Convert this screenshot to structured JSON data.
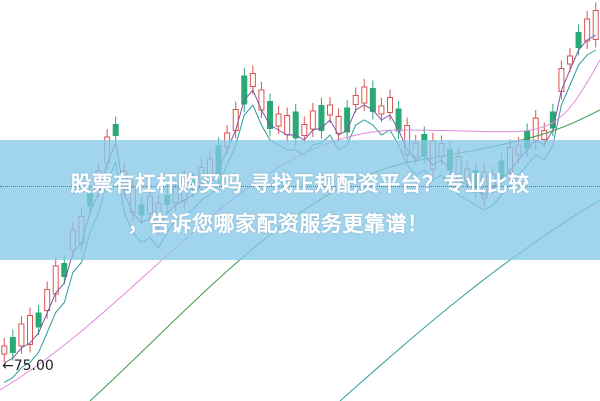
{
  "banner": {
    "title_line1": "股票有杠杆购买吗 寻找正规配资平台？专业比较",
    "title_line2": "，告诉您哪家配资服务更靠谱！"
  },
  "chart": {
    "price_marker": "←75.00",
    "colors": {
      "up": "#d9534f",
      "down": "#2aa876",
      "ma_purple": "#7b5aa6",
      "ma_teal": "#2a9d9d",
      "ma_pink": "#e08adf",
      "ma_green": "#3c9a4a",
      "banner": "#87c8e8"
    }
  }
}
